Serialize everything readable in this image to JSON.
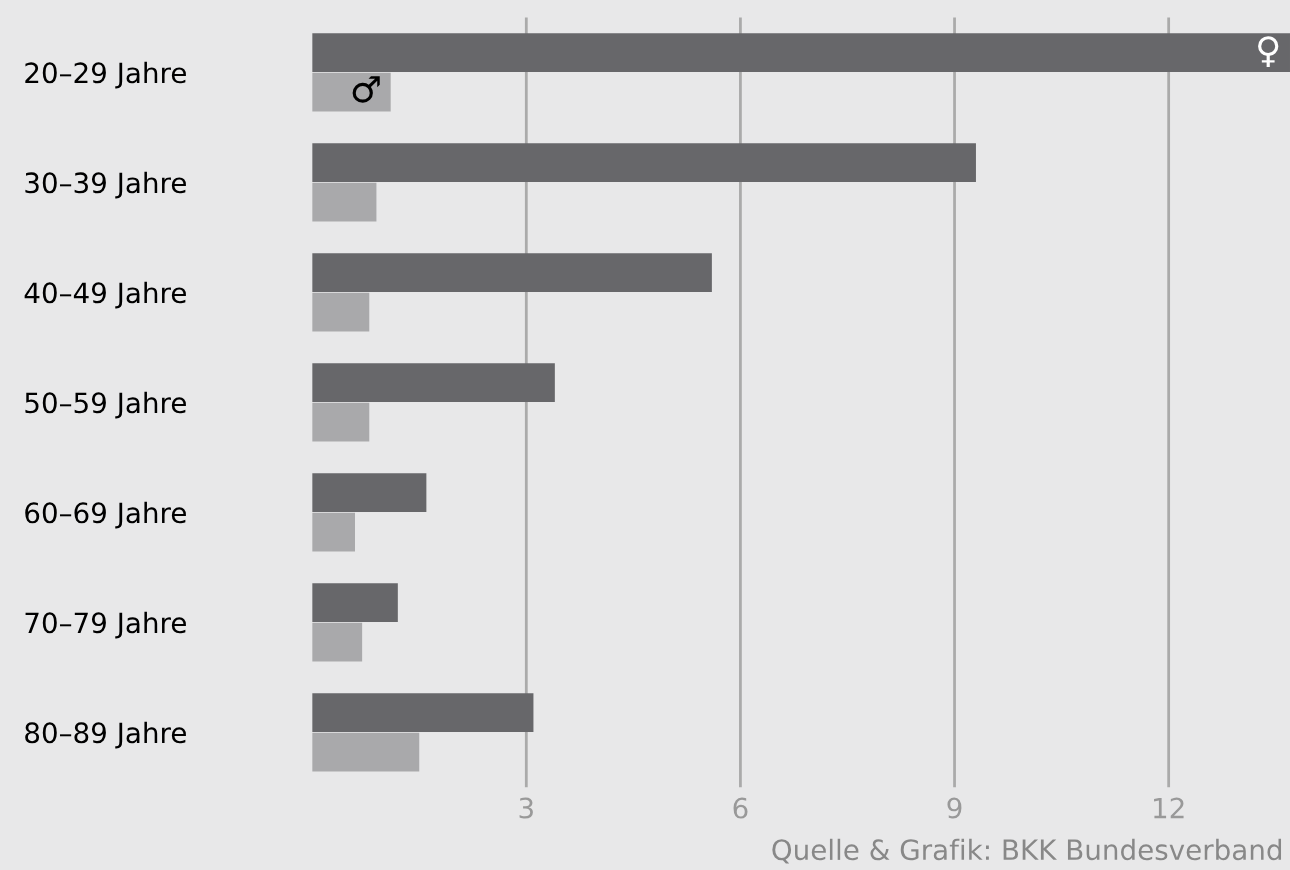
{
  "chart_data": {
    "type": "bar",
    "orientation": "horizontal",
    "categories": [
      "20–29 Jahre",
      "30–39 Jahre",
      "40–49 Jahre",
      "50–59 Jahre",
      "60–69 Jahre",
      "70–79 Jahre",
      "80–89 Jahre"
    ],
    "series": [
      {
        "name": "♀",
        "color": "#67676a",
        "values": [
          13.7,
          9.3,
          5.6,
          3.4,
          1.6,
          1.2,
          3.1
        ]
      },
      {
        "name": "♂",
        "color": "#a9a9ab",
        "values": [
          1.1,
          0.9,
          0.8,
          0.8,
          0.6,
          0.7,
          1.5
        ]
      }
    ],
    "xlim": [
      0,
      13.7
    ],
    "xticks": [
      3,
      6,
      9,
      12
    ],
    "grid": "x",
    "legend": false,
    "annotations": [
      "Quelle & Grafik: BKK Bundesverband"
    ]
  }
}
